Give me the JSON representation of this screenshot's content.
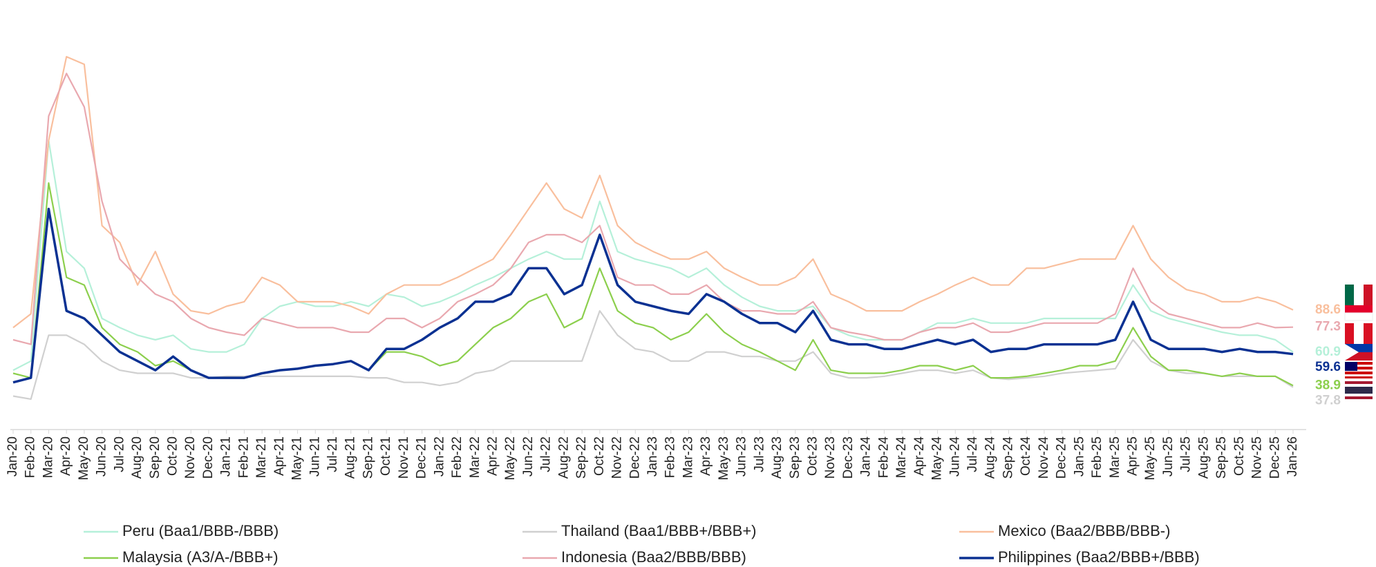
{
  "chart_data": {
    "type": "line",
    "categories": [
      "Jan-20",
      "Feb-20",
      "Mar-20",
      "Apr-20",
      "May-20",
      "Jun-20",
      "Jul-20",
      "Aug-20",
      "Sep-20",
      "Oct-20",
      "Nov-20",
      "Dec-20",
      "Jan-21",
      "Feb-21",
      "Mar-21",
      "Apr-21",
      "May-21",
      "Jun-21",
      "Jul-21",
      "Aug-21",
      "Sep-21",
      "Oct-21",
      "Nov-21",
      "Dec-21",
      "Jan-22",
      "Feb-22",
      "Mar-22",
      "Apr-22",
      "May-22",
      "Jun-22",
      "Jul-22",
      "Aug-22",
      "Sep-22",
      "Oct-22",
      "Nov-22",
      "Dec-22",
      "Jan-23",
      "Feb-23",
      "Mar-23",
      "Apr-23",
      "May-23",
      "Jun-23",
      "Jul-23",
      "Aug-23",
      "Sep-23",
      "Oct-23",
      "Nov-23",
      "Dec-23",
      "Jan-24",
      "Feb-24",
      "Mar-24",
      "Apr-24",
      "May-24",
      "Jun-24",
      "Jul-24",
      "Aug-24",
      "Sep-24",
      "Oct-24",
      "Nov-24",
      "Dec-24",
      "Jan-25",
      "Feb-25",
      "Mar-25",
      "Apr-25",
      "May-25",
      "Jun-25",
      "Jul-25",
      "Aug-25",
      "Sep-25",
      "Oct-25",
      "Nov-25",
      "Dec-25",
      "Jan-26"
    ],
    "ylim": [
      10,
      290
    ],
    "series": [
      {
        "name": "Peru (Baa1/BBB-/BBB)",
        "color": "#b5f0d9",
        "values": [
          49,
          55,
          200,
          127,
          116,
          83,
          77,
          72,
          69,
          72,
          63,
          61,
          61,
          66,
          83,
          91,
          94,
          91,
          91,
          94,
          91,
          99,
          97,
          91,
          94,
          99,
          105,
          110,
          116,
          122,
          127,
          122,
          122,
          160,
          127,
          122,
          119,
          116,
          110,
          116,
          105,
          97,
          91,
          88,
          88,
          91,
          77,
          72,
          69,
          69,
          69,
          74,
          80,
          80,
          83,
          80,
          80,
          80,
          83,
          83,
          83,
          83,
          83,
          105,
          88,
          83,
          80,
          77,
          74,
          72,
          72,
          69,
          60.9
        ]
      },
      {
        "name": "Thailand (Baa1/BBB+/BBB+)",
        "color": "#d0d0d0",
        "values": [
          32,
          30,
          72,
          72,
          66,
          55,
          49,
          47,
          47,
          47,
          44,
          44,
          45,
          45,
          45,
          45,
          45,
          45,
          45,
          45,
          44,
          44,
          41,
          41,
          39,
          41,
          47,
          49,
          55,
          55,
          55,
          55,
          55,
          88,
          72,
          63,
          61,
          55,
          55,
          61,
          61,
          58,
          58,
          55,
          55,
          61,
          47,
          44,
          44,
          45,
          47,
          49,
          49,
          47,
          49,
          44,
          43,
          44,
          45,
          47,
          48,
          49,
          50,
          69,
          55,
          49,
          47,
          47,
          45,
          45,
          45,
          45,
          37.8
        ]
      },
      {
        "name": "Mexico (Baa2/BBB/BBB-)",
        "color": "#f9bf9d",
        "values": [
          77,
          86,
          200,
          255,
          250,
          144,
          133,
          105,
          127,
          99,
          88,
          86,
          91,
          94,
          110,
          105,
          94,
          94,
          94,
          91,
          86,
          99,
          105,
          105,
          105,
          110,
          116,
          122,
          138,
          155,
          172,
          155,
          149,
          177,
          144,
          133,
          127,
          122,
          122,
          127,
          116,
          110,
          105,
          105,
          110,
          122,
          99,
          94,
          88,
          88,
          88,
          94,
          99,
          105,
          110,
          105,
          105,
          116,
          116,
          119,
          122,
          122,
          122,
          144,
          122,
          110,
          102,
          99,
          94,
          94,
          97,
          94,
          88.6
        ]
      },
      {
        "name": "Malaysia (A3/A-/BBB+)",
        "color": "#8ccf4d",
        "values": [
          47,
          44,
          172,
          110,
          105,
          77,
          66,
          61,
          52,
          55,
          49,
          44,
          44,
          44,
          47,
          49,
          50,
          52,
          53,
          55,
          49,
          61,
          61,
          58,
          52,
          55,
          66,
          77,
          83,
          94,
          99,
          77,
          83,
          116,
          88,
          80,
          77,
          69,
          74,
          86,
          74,
          66,
          61,
          55,
          49,
          69,
          49,
          47,
          47,
          47,
          49,
          52,
          52,
          49,
          52,
          44,
          44,
          45,
          47,
          49,
          52,
          52,
          55,
          77,
          58,
          49,
          49,
          47,
          45,
          47,
          45,
          45,
          38.9
        ]
      },
      {
        "name": "Indonesia (Baa2/BBB/BBB)",
        "color": "#e9a8af",
        "values": [
          69,
          66,
          216,
          244,
          222,
          160,
          122,
          110,
          99,
          94,
          83,
          77,
          74,
          72,
          83,
          80,
          77,
          77,
          77,
          74,
          74,
          83,
          83,
          77,
          83,
          94,
          99,
          105,
          116,
          133,
          138,
          138,
          133,
          144,
          110,
          105,
          105,
          99,
          99,
          105,
          94,
          88,
          88,
          86,
          86,
          94,
          77,
          74,
          72,
          69,
          69,
          74,
          77,
          77,
          80,
          74,
          74,
          77,
          80,
          80,
          80,
          80,
          86,
          116,
          94,
          86,
          83,
          80,
          77,
          77,
          80,
          77,
          77.3
        ]
      },
      {
        "name": "Philippines (Baa2/BBB+/BBB)",
        "color": "#0b3192",
        "values": [
          41,
          44,
          155,
          88,
          83,
          72,
          61,
          55,
          49,
          58,
          49,
          44,
          44,
          44,
          47,
          49,
          50,
          52,
          53,
          55,
          49,
          63,
          63,
          69,
          77,
          83,
          94,
          94,
          99,
          116,
          116,
          99,
          105,
          138,
          105,
          94,
          91,
          88,
          86,
          99,
          94,
          86,
          80,
          80,
          74,
          88,
          69,
          66,
          66,
          63,
          63,
          66,
          69,
          66,
          69,
          61,
          63,
          63,
          66,
          66,
          66,
          66,
          69,
          94,
          69,
          63,
          63,
          63,
          61,
          63,
          61,
          61,
          59.6
        ]
      }
    ]
  }
}
